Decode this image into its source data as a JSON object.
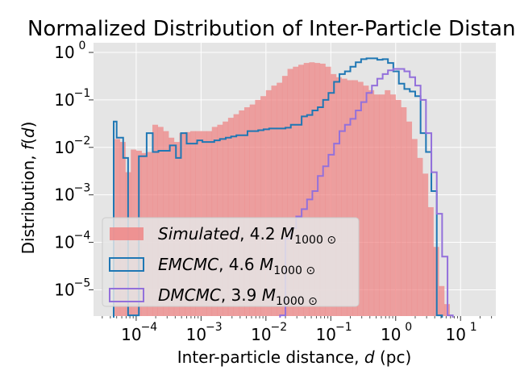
{
  "chart_data": {
    "type": "histogram",
    "title": "Normalized Distribution of Inter-Particle Distan",
    "xlabel": "Inter-particle distance, $d$ (pc)",
    "ylabel": "Distribution, $f(d)$",
    "x_scale": "log",
    "y_scale": "log",
    "xlim": [
      2.2e-05,
      35
    ],
    "ylim": [
      2.8e-06,
      1.6
    ],
    "grid": true,
    "legend_position": "lower-left",
    "x_ticks": [
      {
        "value": 0.0001,
        "label": "10",
        "exp": "−4"
      },
      {
        "value": 0.001,
        "label": "10",
        "exp": "−3"
      },
      {
        "value": 0.01,
        "label": "10",
        "exp": "−2"
      },
      {
        "value": 0.1,
        "label": "10",
        "exp": "−1"
      },
      {
        "value": 1,
        "label": "10",
        "exp": "0"
      },
      {
        "value": 10,
        "label": "10",
        "exp": "1"
      }
    ],
    "y_ticks": [
      {
        "value": 1e-05,
        "label": "10",
        "exp": "−5"
      },
      {
        "value": 0.0001,
        "label": "10",
        "exp": "−4"
      },
      {
        "value": 0.001,
        "label": "10",
        "exp": "−3"
      },
      {
        "value": 0.01,
        "label": "10",
        "exp": "−2"
      },
      {
        "value": 0.1,
        "label": "10",
        "exp": "−1"
      },
      {
        "value": 1,
        "label": "10",
        "exp": "0"
      }
    ],
    "legend": [
      {
        "name": "Simulated",
        "value": "4.2",
        "unit": "M",
        "unit_sub": "1000 ⊙",
        "style": "fill",
        "color": "#f08080"
      },
      {
        "name": "EMCMC",
        "value": "4.6",
        "unit": "M",
        "unit_sub": "1000 ⊙",
        "style": "step",
        "color": "#1f77b4"
      },
      {
        "name": "DMCMC",
        "value": "3.9",
        "unit": "M",
        "unit_sub": "1000 ⊙",
        "style": "step",
        "color": "#9370db"
      }
    ],
    "series": [
      {
        "name": "Simulated",
        "style": "fill",
        "color": "#f08080",
        "log_bin_start": -4.333,
        "log_bin_width": 0.0833,
        "values": [
          0.015,
          0.013,
          0.003,
          0.009,
          0.0085,
          0.0076,
          0.008,
          0.03,
          0.027,
          0.022,
          0.016,
          0.013,
          0.02,
          0.021,
          0.022,
          0.022,
          0.022,
          0.022,
          0.027,
          0.03,
          0.035,
          0.042,
          0.05,
          0.06,
          0.07,
          0.08,
          0.1,
          0.12,
          0.16,
          0.2,
          0.23,
          0.32,
          0.45,
          0.5,
          0.55,
          0.6,
          0.62,
          0.6,
          0.58,
          0.5,
          0.35,
          0.3,
          0.28,
          0.26,
          0.26,
          0.24,
          0.2,
          0.16,
          0.13,
          0.13,
          0.16,
          0.13,
          0.1,
          0.07,
          0.035,
          0.015,
          0.006,
          0.0028,
          0.00055,
          8e-05,
          1.2e-05,
          5e-06
        ],
        "bin_edges_note": "bins span 10^-4.333 to ~10^1.25"
      },
      {
        "name": "EMCMC",
        "style": "step",
        "color": "#1f77b4",
        "x_edges": [
          4.5e-05,
          5e-05,
          6.3e-05,
          7.5e-05,
          0.00011,
          0.00012,
          0.000145,
          0.00018,
          0.00022,
          0.00027,
          0.00033,
          0.00041,
          0.00049,
          0.0006,
          0.00072,
          0.00087,
          0.00105,
          0.0013,
          0.0016,
          0.00195,
          0.0024,
          0.0029,
          0.0035,
          0.0043,
          0.0052,
          0.0063,
          0.0076,
          0.0092,
          0.0112,
          0.0136,
          0.0165,
          0.02,
          0.0242,
          0.0293,
          0.0355,
          0.043,
          0.052,
          0.063,
          0.076,
          0.092,
          0.112,
          0.136,
          0.165,
          0.2,
          0.242,
          0.293,
          0.355,
          0.43,
          0.52,
          0.63,
          0.76,
          0.92,
          1.12,
          1.36,
          1.65,
          2.0,
          2.42,
          2.93,
          3.55,
          4.3,
          5.2
        ],
        "values": [
          0.035,
          0.016,
          0.006,
          2.9e-06,
          0.0065,
          0.0065,
          0.02,
          0.008,
          0.0085,
          0.0085,
          0.011,
          0.006,
          0.02,
          0.012,
          0.012,
          0.014,
          0.013,
          0.013,
          0.014,
          0.015,
          0.016,
          0.017,
          0.018,
          0.018,
          0.022,
          0.022,
          0.023,
          0.024,
          0.025,
          0.025,
          0.025,
          0.026,
          0.03,
          0.03,
          0.045,
          0.048,
          0.06,
          0.07,
          0.1,
          0.14,
          0.24,
          0.35,
          0.4,
          0.5,
          0.62,
          0.72,
          0.75,
          0.75,
          0.7,
          0.72,
          0.6,
          0.4,
          0.22,
          0.17,
          0.15,
          0.12,
          0.02,
          0.008,
          0.0012,
          2.9e-06
        ],
        "note": "left cutoff near 4.5e-5, right cutoff near 5.2 pc"
      },
      {
        "name": "DMCMC",
        "style": "step",
        "color": "#9370db",
        "x_edges": [
          0.0165,
          0.02,
          0.0242,
          0.0293,
          0.0355,
          0.043,
          0.052,
          0.063,
          0.076,
          0.092,
          0.112,
          0.136,
          0.165,
          0.2,
          0.242,
          0.293,
          0.355,
          0.43,
          0.52,
          0.63,
          0.76,
          0.92,
          1.12,
          1.36,
          1.65,
          2.0,
          2.42,
          2.93,
          3.55,
          4.3,
          5.2,
          6.3,
          7.6
        ],
        "values": [
          2.9e-06,
          0.00012,
          0.0002,
          0.00035,
          0.0005,
          0.0008,
          0.0012,
          0.0025,
          0.004,
          0.007,
          0.012,
          0.022,
          0.03,
          0.04,
          0.06,
          0.09,
          0.14,
          0.2,
          0.28,
          0.35,
          0.42,
          0.45,
          0.45,
          0.4,
          0.3,
          0.2,
          0.1,
          0.02,
          0.003,
          0.0004,
          5e-05,
          2.9e-06
        ],
        "note": "starts near 0.018 pc, ends near 7 pc"
      }
    ]
  }
}
